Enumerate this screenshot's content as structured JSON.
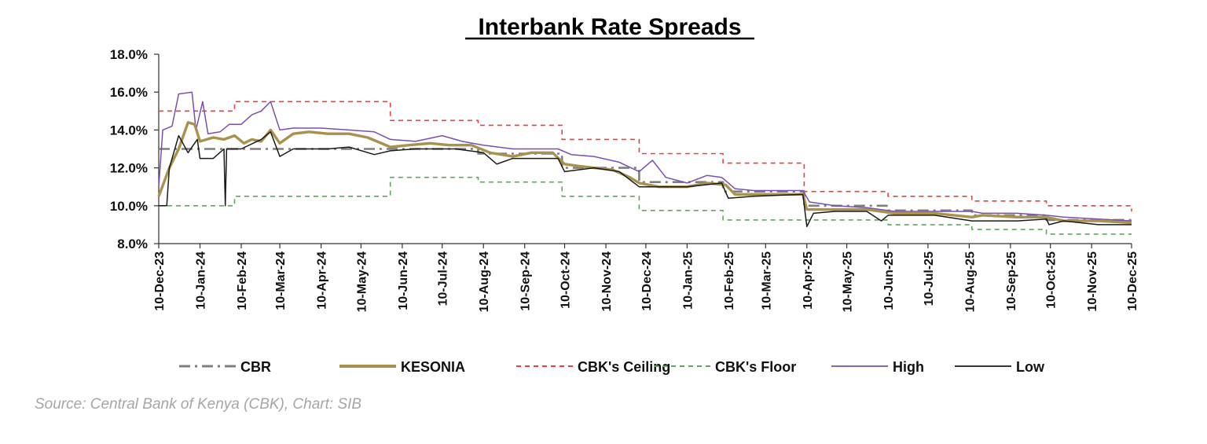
{
  "chart_data": {
    "type": "line",
    "title": "Interbank Rate Spreads",
    "xlabel": "",
    "ylabel": "",
    "ylim": [
      8.0,
      18.0
    ],
    "yticks": [
      "8.0%",
      "10.0%",
      "12.0%",
      "14.0%",
      "16.0%",
      "18.0%"
    ],
    "x_tick_labels": [
      "10-Dec-23",
      "10-Jan-24",
      "10-Feb-24",
      "10-Mar-24",
      "10-Apr-24",
      "10-May-24",
      "10-Jun-24",
      "10-Jul-24",
      "10-Aug-24",
      "10-Sep-24",
      "10-Oct-24",
      "10-Nov-24",
      "10-Dec-24",
      "10-Jan-25",
      "10-Feb-25",
      "10-Mar-25",
      "10-Apr-25",
      "10-May-25",
      "10-Jun-25",
      "10-Jul-25",
      "10-Aug-25",
      "10-Sep-25",
      "10-Oct-25",
      "10-Nov-25",
      "10-Dec-25"
    ],
    "grid": false,
    "legend_position": "bottom",
    "series": [
      {
        "name": "CBR",
        "color": "#7f7f7f",
        "style": "dash-dot",
        "step": true,
        "points": [
          [
            "2023-12-10",
            13.0
          ],
          [
            "2024-08-06",
            12.75
          ],
          [
            "2024-10-08",
            12.0
          ],
          [
            "2024-12-05",
            11.25
          ],
          [
            "2025-02-06",
            10.75
          ],
          [
            "2025-04-08",
            10.0
          ],
          [
            "2025-06-10",
            9.75
          ],
          [
            "2025-08-12",
            9.5
          ],
          [
            "2025-10-07",
            9.25
          ],
          [
            "2025-12-10",
            9.25
          ]
        ]
      },
      {
        "name": "KESONIA",
        "color": "#a8924c",
        "style": "solid",
        "step": false,
        "points": [
          [
            "2023-12-10",
            10.5
          ],
          [
            "2023-12-18",
            12.0
          ],
          [
            "2023-12-25",
            13.0
          ],
          [
            "2024-01-01",
            14.4
          ],
          [
            "2024-01-06",
            14.3
          ],
          [
            "2024-01-10",
            13.4
          ],
          [
            "2024-01-20",
            13.6
          ],
          [
            "2024-01-28",
            13.5
          ],
          [
            "2024-02-05",
            13.7
          ],
          [
            "2024-02-12",
            13.3
          ],
          [
            "2024-02-18",
            13.5
          ],
          [
            "2024-02-25",
            13.4
          ],
          [
            "2024-03-03",
            14.0
          ],
          [
            "2024-03-10",
            13.3
          ],
          [
            "2024-03-20",
            13.8
          ],
          [
            "2024-04-01",
            13.9
          ],
          [
            "2024-04-15",
            13.8
          ],
          [
            "2024-05-01",
            13.8
          ],
          [
            "2024-05-15",
            13.6
          ],
          [
            "2024-06-01",
            13.1
          ],
          [
            "2024-06-15",
            13.2
          ],
          [
            "2024-07-01",
            13.3
          ],
          [
            "2024-07-15",
            13.2
          ],
          [
            "2024-08-01",
            13.2
          ],
          [
            "2024-08-15",
            12.8
          ],
          [
            "2024-09-01",
            12.6
          ],
          [
            "2024-09-15",
            12.8
          ],
          [
            "2024-10-01",
            12.8
          ],
          [
            "2024-10-10",
            12.2
          ],
          [
            "2024-10-20",
            12.1
          ],
          [
            "2024-11-01",
            12.0
          ],
          [
            "2024-11-15",
            11.9
          ],
          [
            "2024-11-28",
            11.5
          ],
          [
            "2024-12-05",
            11.2
          ],
          [
            "2024-12-20",
            11.0
          ],
          [
            "2025-01-10",
            11.0
          ],
          [
            "2025-01-25",
            11.2
          ],
          [
            "2025-02-08",
            11.1
          ],
          [
            "2025-02-15",
            10.6
          ],
          [
            "2025-03-01",
            10.6
          ],
          [
            "2025-04-07",
            10.6
          ],
          [
            "2025-04-10",
            9.8
          ],
          [
            "2025-05-01",
            9.8
          ],
          [
            "2025-05-25",
            9.8
          ],
          [
            "2025-06-15",
            9.6
          ],
          [
            "2025-07-15",
            9.6
          ],
          [
            "2025-08-12",
            9.4
          ],
          [
            "2025-08-20",
            9.5
          ],
          [
            "2025-09-15",
            9.4
          ],
          [
            "2025-10-07",
            9.4
          ],
          [
            "2025-10-20",
            9.2
          ],
          [
            "2025-11-15",
            9.2
          ],
          [
            "2025-12-10",
            9.1
          ]
        ]
      },
      {
        "name": "CBK's Ceiling",
        "color": "#e8433a",
        "style": "dashed",
        "step": true,
        "points": [
          [
            "2023-12-10",
            15.0
          ],
          [
            "2024-02-05",
            15.5
          ],
          [
            "2024-06-01",
            14.5
          ],
          [
            "2024-08-06",
            14.25
          ],
          [
            "2024-10-08",
            13.5
          ],
          [
            "2024-12-05",
            12.75
          ],
          [
            "2025-02-06",
            12.25
          ],
          [
            "2025-04-08",
            10.75
          ],
          [
            "2025-06-10",
            10.5
          ],
          [
            "2025-08-12",
            10.25
          ],
          [
            "2025-10-07",
            10.0
          ],
          [
            "2025-12-10",
            9.7
          ]
        ]
      },
      {
        "name": "CBK's Floor",
        "color": "#5aab5a",
        "style": "dashed",
        "step": true,
        "points": [
          [
            "2023-12-10",
            10.0
          ],
          [
            "2024-02-05",
            10.5
          ],
          [
            "2024-06-01",
            11.5
          ],
          [
            "2024-08-06",
            11.25
          ],
          [
            "2024-10-08",
            10.5
          ],
          [
            "2024-12-05",
            9.75
          ],
          [
            "2025-02-06",
            9.25
          ],
          [
            "2025-06-10",
            9.0
          ],
          [
            "2025-08-12",
            8.75
          ],
          [
            "2025-10-07",
            8.5
          ],
          [
            "2025-12-10",
            8.5
          ]
        ]
      },
      {
        "name": "High",
        "color": "#7a4fb5",
        "style": "solid",
        "step": false,
        "points": [
          [
            "2023-12-10",
            11.0
          ],
          [
            "2023-12-13",
            14.0
          ],
          [
            "2023-12-20",
            14.2
          ],
          [
            "2023-12-25",
            15.9
          ],
          [
            "2024-01-04",
            16.0
          ],
          [
            "2024-01-07",
            14.0
          ],
          [
            "2024-01-12",
            15.5
          ],
          [
            "2024-01-16",
            13.8
          ],
          [
            "2024-01-25",
            13.9
          ],
          [
            "2024-02-01",
            14.3
          ],
          [
            "2024-02-10",
            14.3
          ],
          [
            "2024-02-18",
            14.8
          ],
          [
            "2024-02-25",
            15.0
          ],
          [
            "2024-03-03",
            15.5
          ],
          [
            "2024-03-10",
            14.0
          ],
          [
            "2024-03-20",
            14.1
          ],
          [
            "2024-04-10",
            14.1
          ],
          [
            "2024-05-01",
            14.0
          ],
          [
            "2024-05-20",
            13.9
          ],
          [
            "2024-06-01",
            13.5
          ],
          [
            "2024-06-20",
            13.4
          ],
          [
            "2024-07-10",
            13.7
          ],
          [
            "2024-07-25",
            13.4
          ],
          [
            "2024-08-10",
            13.2
          ],
          [
            "2024-09-01",
            13.0
          ],
          [
            "2024-09-20",
            13.0
          ],
          [
            "2024-10-05",
            13.0
          ],
          [
            "2024-10-15",
            12.7
          ],
          [
            "2024-11-01",
            12.6
          ],
          [
            "2024-11-20",
            12.3
          ],
          [
            "2024-12-05",
            11.8
          ],
          [
            "2024-12-15",
            12.4
          ],
          [
            "2024-12-25",
            11.5
          ],
          [
            "2025-01-10",
            11.2
          ],
          [
            "2025-01-25",
            11.6
          ],
          [
            "2025-02-05",
            11.5
          ],
          [
            "2025-02-15",
            10.9
          ],
          [
            "2025-03-01",
            10.8
          ],
          [
            "2025-04-07",
            10.8
          ],
          [
            "2025-04-12",
            10.2
          ],
          [
            "2025-05-01",
            10.0
          ],
          [
            "2025-05-25",
            9.9
          ],
          [
            "2025-06-15",
            9.7
          ],
          [
            "2025-07-15",
            9.7
          ],
          [
            "2025-08-12",
            9.7
          ],
          [
            "2025-08-20",
            9.6
          ],
          [
            "2025-09-15",
            9.6
          ],
          [
            "2025-10-07",
            9.5
          ],
          [
            "2025-10-20",
            9.4
          ],
          [
            "2025-11-15",
            9.3
          ],
          [
            "2025-12-10",
            9.2
          ]
        ]
      },
      {
        "name": "Low",
        "color": "#1a1a1a",
        "style": "solid",
        "step": false,
        "points": [
          [
            "2023-12-10",
            10.0
          ],
          [
            "2023-12-16",
            10.0
          ],
          [
            "2023-12-18",
            12.0
          ],
          [
            "2023-12-25",
            13.7
          ],
          [
            "2024-01-01",
            12.8
          ],
          [
            "2024-01-08",
            13.5
          ],
          [
            "2024-01-10",
            12.5
          ],
          [
            "2024-01-20",
            12.5
          ],
          [
            "2024-01-28",
            13.0
          ],
          [
            "2024-01-29",
            10.0
          ],
          [
            "2024-01-30",
            13.0
          ],
          [
            "2024-02-10",
            13.0
          ],
          [
            "2024-02-25",
            13.5
          ],
          [
            "2024-03-03",
            13.9
          ],
          [
            "2024-03-10",
            12.6
          ],
          [
            "2024-03-20",
            13.0
          ],
          [
            "2024-04-15",
            13.0
          ],
          [
            "2024-05-01",
            13.1
          ],
          [
            "2024-05-20",
            12.7
          ],
          [
            "2024-06-01",
            12.9
          ],
          [
            "2024-06-20",
            13.0
          ],
          [
            "2024-07-20",
            13.0
          ],
          [
            "2024-08-10",
            12.8
          ],
          [
            "2024-08-20",
            12.2
          ],
          [
            "2024-09-01",
            12.5
          ],
          [
            "2024-09-20",
            12.5
          ],
          [
            "2024-10-05",
            12.5
          ],
          [
            "2024-10-10",
            11.8
          ],
          [
            "2024-11-01",
            12.0
          ],
          [
            "2024-11-20",
            11.8
          ],
          [
            "2024-12-05",
            11.0
          ],
          [
            "2025-01-10",
            11.0
          ],
          [
            "2025-02-05",
            11.2
          ],
          [
            "2025-02-10",
            10.4
          ],
          [
            "2025-03-01",
            10.5
          ],
          [
            "2025-04-07",
            10.6
          ],
          [
            "2025-04-10",
            8.9
          ],
          [
            "2025-04-15",
            9.6
          ],
          [
            "2025-05-01",
            9.7
          ],
          [
            "2025-05-25",
            9.7
          ],
          [
            "2025-06-05",
            9.2
          ],
          [
            "2025-06-10",
            9.5
          ],
          [
            "2025-07-15",
            9.5
          ],
          [
            "2025-08-12",
            9.2
          ],
          [
            "2025-08-20",
            9.2
          ],
          [
            "2025-09-15",
            9.2
          ],
          [
            "2025-10-07",
            9.3
          ],
          [
            "2025-10-09",
            9.0
          ],
          [
            "2025-10-20",
            9.2
          ],
          [
            "2025-11-15",
            9.0
          ],
          [
            "2025-12-10",
            9.0
          ]
        ]
      }
    ]
  },
  "source": "Source: Central Bank of Kenya (CBK), Chart: SIB"
}
